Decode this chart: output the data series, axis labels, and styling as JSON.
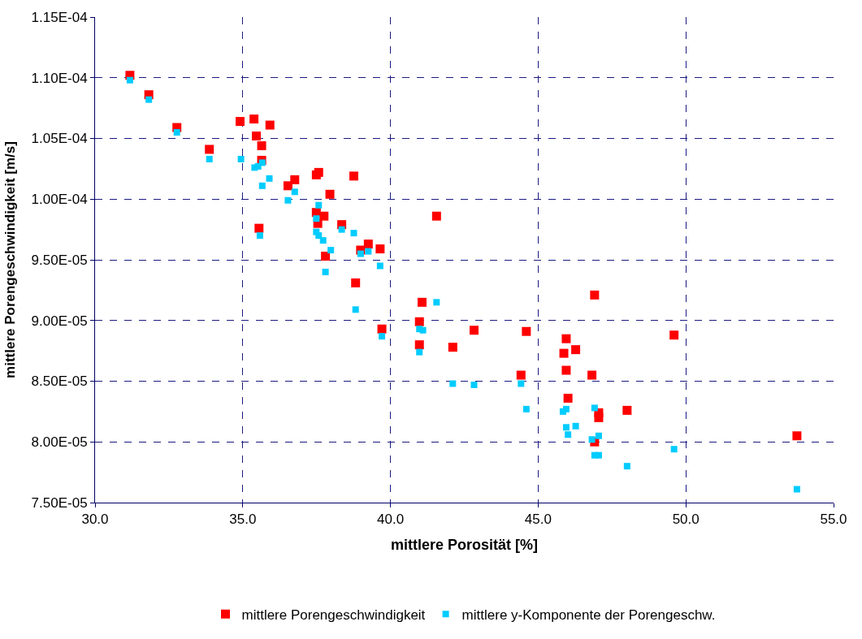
{
  "chart_data": {
    "type": "scatter",
    "xlabel": "mittlere Porosität [%]",
    "ylabel": "mittlere Porengeschwindigkeit [m/s]",
    "xlim": [
      30,
      55
    ],
    "xticks": [
      {
        "value": 30,
        "label": "30.0"
      },
      {
        "value": 35,
        "label": "35.0"
      },
      {
        "value": 40,
        "label": "40.0"
      },
      {
        "value": 45,
        "label": "45.0"
      },
      {
        "value": 50,
        "label": "50.0"
      },
      {
        "value": 55,
        "label": "55.0"
      }
    ],
    "ylim": [
      7.5e-05,
      0.000115
    ],
    "yticks": [
      {
        "value": 7.5e-05,
        "label": "7.50E-05"
      },
      {
        "value": 8e-05,
        "label": "8.00E-05"
      },
      {
        "value": 8.5e-05,
        "label": "8.50E-05"
      },
      {
        "value": 9e-05,
        "label": "9.00E-05"
      },
      {
        "value": 9.5e-05,
        "label": "9.50E-05"
      },
      {
        "value": 0.0001,
        "label": "1.00E-04"
      },
      {
        "value": 0.000105,
        "label": "1.05E-04"
      },
      {
        "value": 0.00011,
        "label": "1.10E-04"
      },
      {
        "value": 0.000115,
        "label": "1.15E-04"
      }
    ],
    "grid": true,
    "legend": "bottom",
    "marker": "square",
    "series": [
      {
        "name": "mittlere Porengeschwindigkeit",
        "color": "#ff0000",
        "x": [
          31.18,
          31.82,
          32.77,
          33.87,
          34.91,
          35.38,
          35.46,
          35.92,
          35.64,
          35.64,
          36.53,
          36.76,
          37.49,
          37.57,
          38.76,
          37.95,
          37.49,
          37.75,
          37.54,
          35.55,
          38.35,
          39.25,
          39.65,
          38.99,
          37.8,
          38.82,
          41.56,
          41.07,
          40.98,
          39.71,
          40.98,
          42.11,
          42.83,
          44.6,
          44.42,
          46.91,
          45.95,
          45.87,
          46.27,
          45.95,
          46.82,
          49.6,
          46.01,
          47.05,
          47.05,
          48.01,
          46.91,
          53.76
        ],
        "values": [
          0.0001102,
          0.0001086,
          0.0001059,
          0.0001041,
          0.0001064,
          0.0001066,
          0.0001052,
          0.0001061,
          0.0001044,
          0.0001032,
          0.0001011,
          0.0001016,
          0.000102,
          0.0001022,
          0.0001019,
          0.0001004,
          9.89e-05,
          9.86e-05,
          9.8e-05,
          9.76e-05,
          9.79e-05,
          9.63e-05,
          9.59e-05,
          9.58e-05,
          9.53e-05,
          9.31e-05,
          9.86e-05,
          9.15e-05,
          8.99e-05,
          8.93e-05,
          8.8e-05,
          8.78e-05,
          8.92e-05,
          8.91e-05,
          8.55e-05,
          9.21e-05,
          8.85e-05,
          8.73e-05,
          8.76e-05,
          8.59e-05,
          8.55e-05,
          8.88e-05,
          8.36e-05,
          8.24e-05,
          8.2e-05,
          8.26e-05,
          8e-05,
          8.05e-05
        ]
      },
      {
        "name": "mittlere y-Komponente der Porengeschw.",
        "color": "#00ccff",
        "x": [
          31.18,
          31.82,
          32.77,
          33.87,
          34.94,
          35.4,
          35.52,
          35.66,
          35.9,
          35.66,
          36.53,
          36.76,
          37.57,
          37.49,
          37.49,
          37.57,
          37.72,
          37.98,
          35.58,
          38.35,
          38.76,
          38.99,
          39.25,
          39.65,
          37.8,
          38.82,
          41.56,
          39.71,
          40.98,
          41.1,
          40.98,
          42.11,
          42.83,
          44.42,
          44.6,
          46.91,
          45.84,
          45.95,
          45.95,
          46.27,
          46.01,
          47.05,
          46.82,
          46.91,
          47.05,
          48.01,
          49.6,
          53.76
        ],
        "values": [
          0.0001098,
          0.0001082,
          0.0001055,
          0.0001033,
          0.0001033,
          0.0001026,
          0.0001027,
          0.000103,
          0.0001017,
          0.0001011,
          9.99e-05,
          0.0001006,
          9.95e-05,
          9.84e-05,
          9.73e-05,
          9.7e-05,
          9.66e-05,
          9.58e-05,
          9.7e-05,
          9.75e-05,
          9.72e-05,
          9.55e-05,
          9.57e-05,
          9.45e-05,
          9.4e-05,
          9.09e-05,
          9.15e-05,
          8.87e-05,
          8.93e-05,
          8.92e-05,
          8.74e-05,
          8.48e-05,
          8.47e-05,
          8.48e-05,
          8.27e-05,
          8.28e-05,
          8.25e-05,
          8.27e-05,
          8.12e-05,
          8.13e-05,
          8.06e-05,
          8.05e-05,
          8.02e-05,
          7.89e-05,
          7.89e-05,
          7.8e-05,
          7.94e-05,
          7.61e-05
        ]
      }
    ]
  }
}
